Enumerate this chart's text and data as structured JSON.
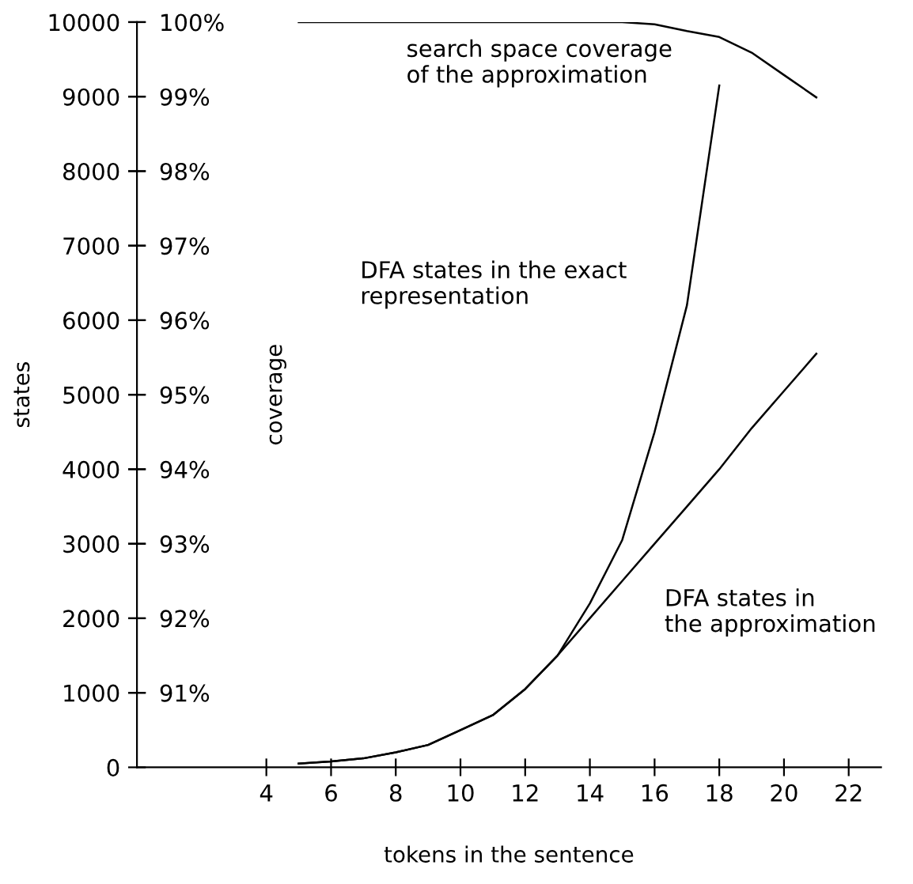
{
  "chart_data": {
    "type": "line",
    "xlabel": "tokens in the sentence",
    "ylabel": "states",
    "y2label": "coverage",
    "xlim": [
      0,
      23
    ],
    "xticks": [
      4,
      6,
      8,
      10,
      12,
      14,
      16,
      18,
      20,
      22
    ],
    "ylim": [
      0,
      10000
    ],
    "yticks": [
      0,
      1000,
      2000,
      3000,
      4000,
      5000,
      6000,
      7000,
      8000,
      9000,
      10000
    ],
    "y2lim": [
      90,
      100
    ],
    "y2ticks": [
      {
        "value": 91,
        "label": "91%"
      },
      {
        "value": 92,
        "label": "92%"
      },
      {
        "value": 93,
        "label": "93%"
      },
      {
        "value": 94,
        "label": "94%"
      },
      {
        "value": 95,
        "label": "95%"
      },
      {
        "value": 96,
        "label": "96%"
      },
      {
        "value": 97,
        "label": "97%"
      },
      {
        "value": 98,
        "label": "98%"
      },
      {
        "value": 99,
        "label": "99%"
      },
      {
        "value": 100,
        "label": "100%"
      }
    ],
    "grid": false,
    "legend": false,
    "marker": "none",
    "line_style": "solid",
    "series": [
      {
        "color": "#000000",
        "x": [
          5,
          6,
          7,
          8,
          9,
          10,
          11,
          12,
          13,
          14,
          15,
          16,
          17,
          18
        ],
        "values": [
          50,
          80,
          120,
          200,
          300,
          500,
          700,
          1050,
          1500,
          2200,
          3050,
          4500,
          6200,
          9150
        ]
      },
      {
        "color": "#000000",
        "x": [
          5,
          6,
          7,
          8,
          9,
          10,
          11,
          12,
          13,
          14,
          15,
          16,
          17,
          18,
          19,
          20,
          21
        ],
        "values": [
          50,
          80,
          120,
          200,
          300,
          500,
          700,
          1050,
          1500,
          2000,
          2500,
          3000,
          3500,
          4000,
          4550,
          5050,
          5550
        ]
      },
      {
        "color": "#000000",
        "axis": "y2",
        "x": [
          5,
          6,
          7,
          8,
          9,
          10,
          11,
          12,
          13,
          14,
          15,
          16,
          17,
          18,
          19,
          20,
          21
        ],
        "values": [
          100,
          100,
          100,
          100,
          100,
          100,
          100,
          100,
          100,
          100,
          100,
          99.97,
          99.88,
          99.8,
          99.59,
          99.29,
          98.99
        ]
      }
    ],
    "annotations": [
      "search space coverage\nof the approximation",
      "DFA states in the exact\nrepresentation",
      "DFA states in\nthe approximation"
    ]
  }
}
